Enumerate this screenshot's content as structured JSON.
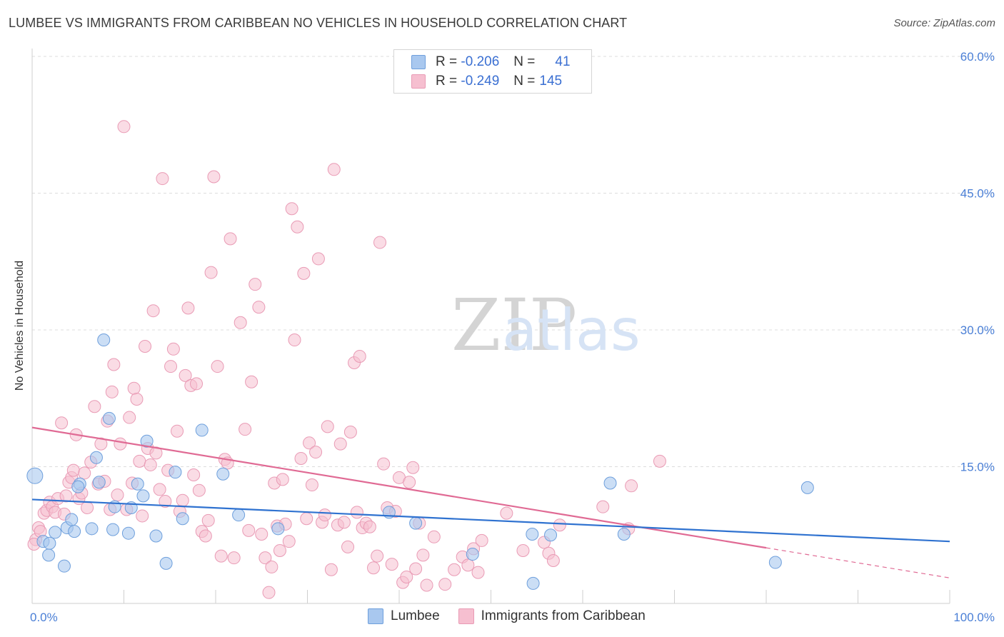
{
  "title": "LUMBEE VS IMMIGRANTS FROM CARIBBEAN NO VEHICLES IN HOUSEHOLD CORRELATION CHART",
  "source": "Source: ZipAtlas.com",
  "watermark": {
    "zip": "ZIP",
    "atlas": "atlas"
  },
  "colors": {
    "lumbee_fill": "#a9c8ef",
    "lumbee_stroke": "#6e9fdc",
    "lumbee_line": "#2f72d0",
    "carib_fill": "#f6bfd0",
    "carib_stroke": "#e99bb5",
    "carib_line": "#e06a94",
    "tick_text": "#4a7fd6",
    "grid": "#dddddd"
  },
  "legend": {
    "r1_label": "R =",
    "r1_value": "-0.206",
    "n1_label": "N =",
    "n1_value": "41",
    "r2_label": "R =",
    "r2_value": "-0.249",
    "n2_label": "N =",
    "n2_value": "145"
  },
  "chart_data": {
    "type": "scatter",
    "title": "LUMBEE VS IMMIGRANTS FROM CARIBBEAN NO VEHICLES IN HOUSEHOLD CORRELATION CHART",
    "xlabel": "",
    "ylabel": "No Vehicles in Household",
    "xlim": [
      0,
      100
    ],
    "ylim": [
      0,
      60
    ],
    "x_tick_labels": [
      "0.0%",
      "100.0%"
    ],
    "y_ticks": [
      15,
      30,
      45,
      60
    ],
    "y_tick_labels": [
      "15.0%",
      "30.0%",
      "45.0%",
      "60.0%"
    ],
    "grid": "horizontal dashed",
    "legend_position": "top-center",
    "series": [
      {
        "name": "Lumbee",
        "color": "#a9c8ef",
        "trend": {
          "x0": 0,
          "y0": 11.4,
          "x1": 100,
          "y1": 6.8
        },
        "points": [
          [
            0.3,
            14.0
          ],
          [
            1.2,
            6.8
          ],
          [
            1.8,
            5.3
          ],
          [
            2.5,
            7.8
          ],
          [
            3.5,
            4.1
          ],
          [
            1.9,
            6.6
          ],
          [
            3.8,
            8.3
          ],
          [
            4.3,
            9.2
          ],
          [
            4.6,
            7.9
          ],
          [
            5.2,
            13.1
          ],
          [
            5.0,
            12.8
          ],
          [
            6.5,
            8.2
          ],
          [
            7.0,
            16.0
          ],
          [
            7.3,
            13.3
          ],
          [
            7.8,
            28.9
          ],
          [
            8.4,
            20.3
          ],
          [
            8.8,
            8.1
          ],
          [
            9.0,
            10.6
          ],
          [
            10.5,
            7.7
          ],
          [
            10.8,
            10.5
          ],
          [
            11.5,
            13.1
          ],
          [
            12.1,
            11.8
          ],
          [
            12.5,
            17.8
          ],
          [
            13.5,
            7.4
          ],
          [
            14.6,
            4.4
          ],
          [
            15.6,
            14.4
          ],
          [
            16.4,
            9.3
          ],
          [
            18.5,
            19.0
          ],
          [
            20.8,
            14.2
          ],
          [
            22.5,
            9.7
          ],
          [
            26.8,
            8.2
          ],
          [
            38.9,
            10.0
          ],
          [
            41.8,
            8.8
          ],
          [
            48.0,
            5.4
          ],
          [
            54.5,
            7.6
          ],
          [
            54.6,
            2.2
          ],
          [
            56.5,
            7.5
          ],
          [
            63.0,
            13.2
          ],
          [
            64.5,
            7.6
          ],
          [
            81.0,
            4.5
          ],
          [
            84.5,
            12.7
          ]
        ]
      },
      {
        "name": "Immigrants from Caribbean",
        "color": "#f6bfd0",
        "trend": {
          "x0": 0,
          "y0": 19.3,
          "x1": 80,
          "y1": 6.1,
          "dash_to_x": 100,
          "dash_to_y": 2.8
        },
        "points": [
          [
            0.4,
            7.0
          ],
          [
            0.7,
            8.3
          ],
          [
            0.9,
            7.9
          ],
          [
            1.3,
            9.9
          ],
          [
            1.6,
            10.2
          ],
          [
            1.9,
            11.1
          ],
          [
            2.2,
            10.6
          ],
          [
            2.5,
            10.0
          ],
          [
            2.8,
            11.5
          ],
          [
            3.2,
            19.8
          ],
          [
            3.5,
            9.8
          ],
          [
            3.7,
            11.8
          ],
          [
            4.0,
            13.3
          ],
          [
            4.3,
            13.8
          ],
          [
            4.5,
            14.6
          ],
          [
            4.8,
            18.5
          ],
          [
            5.1,
            11.5
          ],
          [
            5.4,
            12.1
          ],
          [
            5.7,
            14.3
          ],
          [
            6.0,
            10.5
          ],
          [
            6.4,
            15.5
          ],
          [
            6.8,
            21.6
          ],
          [
            7.2,
            13.1
          ],
          [
            7.5,
            17.5
          ],
          [
            7.9,
            13.4
          ],
          [
            8.2,
            20.0
          ],
          [
            8.5,
            10.3
          ],
          [
            8.7,
            23.2
          ],
          [
            8.9,
            26.2
          ],
          [
            9.3,
            11.9
          ],
          [
            9.6,
            17.5
          ],
          [
            10.0,
            52.3
          ],
          [
            10.3,
            10.3
          ],
          [
            10.6,
            20.4
          ],
          [
            10.9,
            13.2
          ],
          [
            11.1,
            23.6
          ],
          [
            11.4,
            22.4
          ],
          [
            11.7,
            15.6
          ],
          [
            12.0,
            9.6
          ],
          [
            12.3,
            28.2
          ],
          [
            12.6,
            17.0
          ],
          [
            12.9,
            15.2
          ],
          [
            13.2,
            32.1
          ],
          [
            13.5,
            16.5
          ],
          [
            13.9,
            12.5
          ],
          [
            14.2,
            46.6
          ],
          [
            14.5,
            11.2
          ],
          [
            14.8,
            14.6
          ],
          [
            15.1,
            26.0
          ],
          [
            15.4,
            27.9
          ],
          [
            15.8,
            18.9
          ],
          [
            16.1,
            10.1
          ],
          [
            16.4,
            11.3
          ],
          [
            16.7,
            25.0
          ],
          [
            17.0,
            32.4
          ],
          [
            17.3,
            23.9
          ],
          [
            17.6,
            14.1
          ],
          [
            17.9,
            24.1
          ],
          [
            18.2,
            12.4
          ],
          [
            18.5,
            7.9
          ],
          [
            18.9,
            7.4
          ],
          [
            19.2,
            9.1
          ],
          [
            19.5,
            36.3
          ],
          [
            19.8,
            46.8
          ],
          [
            20.2,
            26.0
          ],
          [
            20.6,
            5.2
          ],
          [
            21.0,
            15.8
          ],
          [
            21.3,
            15.4
          ],
          [
            21.6,
            40.0
          ],
          [
            22.0,
            5.0
          ],
          [
            22.7,
            30.8
          ],
          [
            23.2,
            19.1
          ],
          [
            23.6,
            8.0
          ],
          [
            23.9,
            24.3
          ],
          [
            24.3,
            35.0
          ],
          [
            24.7,
            32.5
          ],
          [
            25.0,
            7.6
          ],
          [
            25.4,
            5.0
          ],
          [
            25.8,
            1.2
          ],
          [
            26.1,
            4.0
          ],
          [
            26.4,
            13.2
          ],
          [
            26.7,
            8.5
          ],
          [
            27.0,
            5.8
          ],
          [
            27.3,
            13.6
          ],
          [
            27.6,
            8.7
          ],
          [
            28.0,
            6.8
          ],
          [
            28.3,
            43.3
          ],
          [
            28.6,
            28.9
          ],
          [
            28.9,
            41.3
          ],
          [
            29.3,
            15.9
          ],
          [
            29.6,
            36.2
          ],
          [
            29.9,
            9.3
          ],
          [
            30.2,
            17.6
          ],
          [
            30.5,
            13.0
          ],
          [
            30.9,
            16.6
          ],
          [
            31.2,
            37.8
          ],
          [
            31.6,
            8.9
          ],
          [
            31.9,
            9.7
          ],
          [
            32.2,
            19.4
          ],
          [
            32.6,
            3.7
          ],
          [
            32.9,
            47.6
          ],
          [
            33.3,
            8.6
          ],
          [
            33.6,
            17.5
          ],
          [
            34.0,
            8.9
          ],
          [
            34.4,
            6.2
          ],
          [
            34.7,
            18.8
          ],
          [
            35.1,
            26.4
          ],
          [
            35.4,
            10.0
          ],
          [
            35.7,
            27.1
          ],
          [
            36.0,
            8.3
          ],
          [
            36.4,
            8.8
          ],
          [
            36.8,
            8.4
          ],
          [
            37.2,
            3.9
          ],
          [
            37.6,
            5.2
          ],
          [
            37.9,
            39.6
          ],
          [
            38.3,
            15.3
          ],
          [
            38.7,
            10.5
          ],
          [
            39.2,
            4.3
          ],
          [
            39.6,
            10.1
          ],
          [
            40.0,
            13.8
          ],
          [
            40.4,
            2.3
          ],
          [
            40.8,
            2.9
          ],
          [
            41.1,
            13.3
          ],
          [
            41.5,
            14.9
          ],
          [
            41.8,
            3.8
          ],
          [
            42.2,
            8.8
          ],
          [
            42.6,
            5.3
          ],
          [
            43.0,
            2.0
          ],
          [
            43.8,
            7.3
          ],
          [
            45.0,
            2.1
          ],
          [
            46.0,
            3.7
          ],
          [
            46.9,
            5.1
          ],
          [
            48.1,
            6.0
          ],
          [
            47.5,
            4.2
          ],
          [
            48.6,
            3.4
          ],
          [
            49.0,
            6.9
          ],
          [
            51.7,
            9.9
          ],
          [
            53.5,
            5.8
          ],
          [
            55.8,
            6.7
          ],
          [
            56.3,
            5.5
          ],
          [
            56.8,
            4.7
          ],
          [
            57.5,
            8.6
          ],
          [
            62.2,
            10.6
          ],
          [
            65.0,
            8.2
          ],
          [
            65.3,
            12.9
          ],
          [
            68.4,
            15.6
          ],
          [
            0.2,
            6.5
          ]
        ]
      }
    ]
  }
}
